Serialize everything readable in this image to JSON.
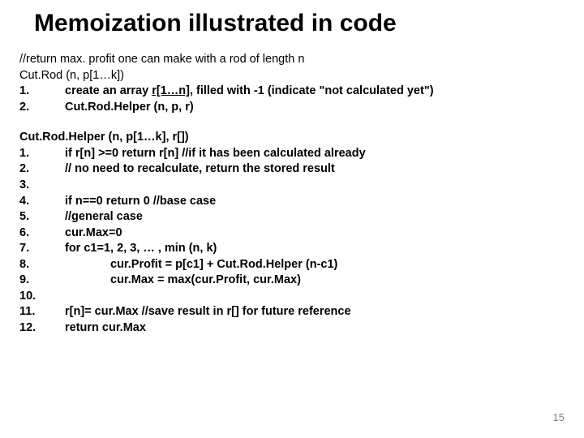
{
  "title": "Memoization illustrated in code",
  "block1": {
    "comment": "//return max. profit one can make with a rod of length n",
    "sig": "Cut.Rod (n, p[1…k])",
    "lines": [
      {
        "n": "1.",
        "t": "create an array ",
        "u": "r[1…n]",
        "rest": ", filled with -1 (indicate \"not calculated yet\")"
      },
      {
        "n": "2.",
        "t": "Cut.Rod.Helper (n, p, r)"
      }
    ]
  },
  "block2": {
    "sig": "Cut.Rod.Helper (n, p[1…k], r[])",
    "lines": [
      {
        "n": "1.",
        "t": "if r[n] >=0 return r[n]  //if it has been calculated already"
      },
      {
        "n": "2.",
        "t": " // no need to recalculate, return the stored result"
      },
      {
        "n": "3.",
        "t": ""
      },
      {
        "n": "4.",
        "t": "if n==0 return 0 //base case"
      },
      {
        "n": "5.",
        "t": "//general case"
      },
      {
        "n": "6.",
        "t": "cur.Max=0"
      },
      {
        "n": "7.",
        "t": "for  c1=1, 2, 3, … ,  min (n, k)"
      },
      {
        "n": "8.",
        "t": "cur.Profit = p[c1] + Cut.Rod.Helper (n-c1)",
        "deep": true
      },
      {
        "n": "9.",
        "t": "cur.Max = max(cur.Profit, cur.Max)",
        "deep": true
      },
      {
        "n": "10.",
        "t": ""
      },
      {
        "n": "11.",
        "t": "r[n]= cur.Max   //save result in r[] for future reference"
      },
      {
        "n": "12.",
        "t": "return cur.Max"
      }
    ]
  },
  "pageNumber": "15",
  "colors": {
    "title": "#000000",
    "text": "#000000",
    "pageNum": "#7f7f7f",
    "bg": "#ffffff"
  },
  "fontsizes": {
    "title": 30,
    "body": 14.5,
    "pageNum": 13
  }
}
